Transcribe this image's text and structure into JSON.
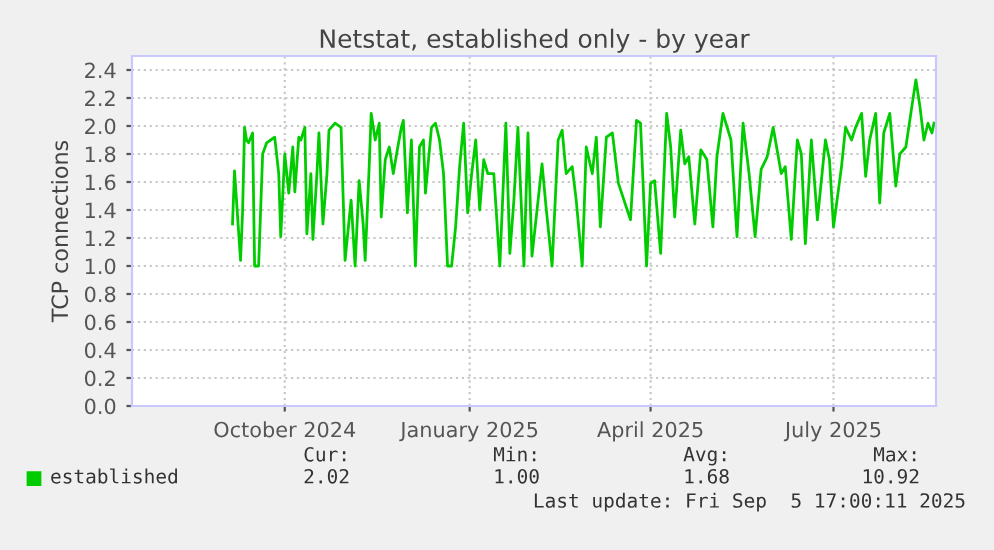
{
  "chart_data": {
    "type": "line",
    "title": "Netstat, established only - by year",
    "ylabel": "TCP connections",
    "x": [
      "2024-09-20",
      "2024-09-21",
      "2024-09-24",
      "2024-09-25",
      "2024-09-26",
      "2024-09-27",
      "2024-09-28",
      "2024-09-30",
      "2024-10-01",
      "2024-10-03",
      "2024-10-05",
      "2024-10-07",
      "2024-10-09",
      "2024-10-11",
      "2024-10-13",
      "2024-10-14",
      "2024-10-16",
      "2024-10-18",
      "2024-10-20",
      "2024-10-21",
      "2024-10-23",
      "2024-10-24",
      "2024-10-26",
      "2024-10-27",
      "2024-10-29",
      "2024-10-30",
      "2024-11-01",
      "2024-11-02",
      "2024-11-04",
      "2024-11-06",
      "2024-11-07",
      "2024-11-10",
      "2024-11-13",
      "2024-11-15",
      "2024-11-18",
      "2024-11-20",
      "2024-11-22",
      "2024-11-24",
      "2024-11-25",
      "2024-11-27",
      "2024-11-28",
      "2024-11-30",
      "2024-12-02",
      "2024-12-03",
      "2024-12-05",
      "2024-12-07",
      "2024-12-09",
      "2024-12-11",
      "2024-12-13",
      "2024-12-14",
      "2024-12-16",
      "2024-12-18",
      "2024-12-20",
      "2024-12-22",
      "2024-12-24",
      "2024-12-25",
      "2024-12-28",
      "2024-12-30",
      "2025-01-01",
      "2025-01-03",
      "2025-01-05",
      "2025-01-07",
      "2025-01-09",
      "2025-01-11",
      "2025-01-13",
      "2025-01-15",
      "2025-01-17",
      "2025-01-19",
      "2025-01-21",
      "2025-01-23",
      "2025-01-25",
      "2025-01-28",
      "2025-01-31",
      "2025-02-03",
      "2025-02-05",
      "2025-02-07",
      "2025-02-09",
      "2025-02-12",
      "2025-02-14",
      "2025-02-16",
      "2025-02-21",
      "2025-02-23",
      "2025-02-26",
      "2025-03-01",
      "2025-03-03",
      "2025-03-05",
      "2025-03-08",
      "2025-03-10",
      "2025-03-13",
      "2025-03-15",
      "2025-03-18",
      "2025-03-20",
      "2025-03-22",
      "2025-03-25",
      "2025-03-28",
      "2025-03-31",
      "2025-04-06",
      "2025-04-09",
      "2025-04-11",
      "2025-04-14",
      "2025-04-16",
      "2025-04-18",
      "2025-04-21",
      "2025-04-24",
      "2025-04-26",
      "2025-04-28",
      "2025-05-01",
      "2025-05-03",
      "2025-05-05",
      "2025-05-08",
      "2025-05-11",
      "2025-05-14",
      "2025-05-17",
      "2025-05-19",
      "2025-05-22",
      "2025-05-26",
      "2025-05-29",
      "2025-06-01",
      "2025-06-04",
      "2025-06-07",
      "2025-06-10",
      "2025-06-13",
      "2025-06-16",
      "2025-06-20",
      "2025-06-22",
      "2025-06-25",
      "2025-06-28",
      "2025-06-30",
      "2025-07-02",
      "2025-07-05",
      "2025-07-08",
      "2025-07-12",
      "2025-07-14",
      "2025-07-16",
      "2025-07-20",
      "2025-07-22",
      "2025-07-25",
      "2025-07-27",
      "2025-07-30",
      "2025-08-01",
      "2025-08-03",
      "2025-08-06",
      "2025-08-08",
      "2025-08-10",
      "2025-08-13",
      "2025-08-16",
      "2025-08-18",
      "2025-08-21",
      "2025-08-24",
      "2025-08-26",
      "2025-08-28",
      "2025-08-30",
      "2025-09-01",
      "2025-09-03",
      "2025-09-04"
    ],
    "series": [
      {
        "name": "established",
        "color": "#00cc00",
        "values": [
          1.3,
          1.68,
          1.04,
          1.38,
          1.99,
          1.9,
          1.88,
          1.95,
          1.0,
          1.0,
          1.8,
          1.88,
          1.9,
          1.92,
          1.66,
          1.21,
          1.8,
          1.52,
          1.85,
          1.53,
          1.92,
          1.9,
          1.99,
          1.23,
          1.66,
          1.19,
          1.66,
          1.95,
          1.3,
          1.66,
          1.97,
          2.02,
          1.99,
          1.04,
          1.47,
          1.0,
          1.61,
          1.3,
          1.04,
          1.71,
          2.09,
          1.9,
          2.02,
          1.35,
          1.76,
          1.85,
          1.66,
          1.83,
          1.99,
          2.04,
          1.38,
          1.9,
          1.0,
          1.85,
          1.9,
          1.52,
          1.99,
          2.02,
          1.9,
          1.66,
          1.0,
          1.0,
          1.28,
          1.71,
          2.02,
          1.38,
          1.66,
          1.9,
          1.4,
          1.76,
          1.66,
          1.66,
          1.0,
          2.02,
          1.09,
          1.47,
          1.99,
          1.0,
          1.95,
          1.07,
          1.73,
          1.42,
          1.0,
          1.9,
          1.97,
          1.66,
          1.71,
          1.47,
          1.0,
          1.85,
          1.66,
          1.92,
          1.28,
          1.92,
          1.95,
          1.59,
          1.33,
          2.04,
          2.02,
          1.0,
          1.59,
          1.61,
          1.09,
          2.09,
          1.85,
          1.35,
          1.97,
          1.73,
          1.78,
          1.3,
          1.83,
          1.76,
          1.28,
          1.78,
          2.09,
          1.9,
          1.21,
          2.02,
          1.66,
          1.21,
          1.69,
          1.78,
          1.99,
          1.66,
          1.71,
          1.19,
          1.9,
          1.8,
          1.16,
          1.9,
          1.33,
          1.9,
          1.76,
          1.28,
          1.71,
          1.99,
          1.9,
          1.99,
          2.09,
          1.64,
          1.9,
          2.09,
          1.45,
          1.95,
          2.09,
          1.57,
          1.8,
          1.85,
          2.14,
          2.33,
          2.14,
          1.9,
          2.02,
          1.95,
          2.02
        ]
      }
    ],
    "xlim": [
      "2024-08-01",
      "2025-09-05"
    ],
    "xticks": [
      {
        "value": "2024-10-16",
        "label": "October 2024"
      },
      {
        "value": "2025-01-16",
        "label": "January 2025"
      },
      {
        "value": "2025-04-16",
        "label": "April 2025"
      },
      {
        "value": "2025-07-16",
        "label": "July 2025"
      }
    ],
    "ylim": [
      0,
      2.5
    ],
    "yticks": [
      {
        "value": 0,
        "label": "0.0"
      },
      {
        "value": 0.2,
        "label": "0.2"
      },
      {
        "value": 0.4,
        "label": "0.4"
      },
      {
        "value": 0.6,
        "label": "0.6"
      },
      {
        "value": 0.8,
        "label": "0.8"
      },
      {
        "value": 1.0,
        "label": "1.0"
      },
      {
        "value": 1.2,
        "label": "1.2"
      },
      {
        "value": 1.4,
        "label": "1.4"
      },
      {
        "value": 1.6,
        "label": "1.6"
      },
      {
        "value": 1.8,
        "label": "1.8"
      },
      {
        "value": 2.0,
        "label": "2.0"
      },
      {
        "value": 2.2,
        "label": "2.2"
      },
      {
        "value": 2.4,
        "label": "2.4"
      }
    ],
    "grid": true,
    "legend": "bottom",
    "marker": "none",
    "line_style": "solid",
    "annotations": [
      "Cur:",
      "2.02",
      "Min:",
      "1.00",
      "Avg:",
      "1.68",
      "Max:",
      "10.92",
      "Last update: Fri Sep  5 17:00:11 2025"
    ]
  }
}
